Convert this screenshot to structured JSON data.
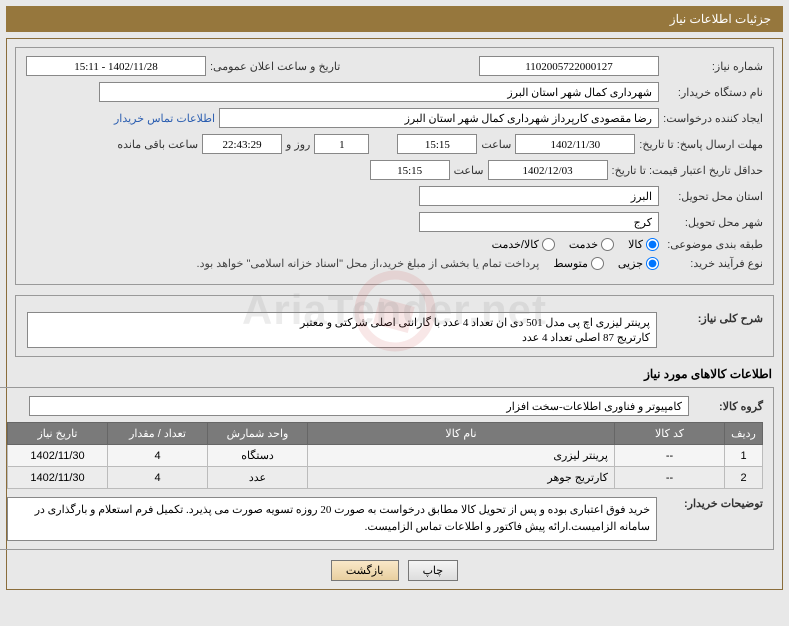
{
  "header": {
    "title": "جزئیات اطلاعات نیاز"
  },
  "fields": {
    "need_no_label": "شماره نیاز:",
    "need_no": "1102005722000127",
    "announce_label": "تاریخ و ساعت اعلان عمومی:",
    "announce": "1402/11/28 - 15:11",
    "buyer_org_label": "نام دستگاه خریدار:",
    "buyer_org": "شهرداری کمال شهر استان البرز",
    "requester_label": "ایجاد کننده درخواست:",
    "requester": "رضا مقصودی کارپرداز شهرداری کمال شهر استان البرز",
    "contact_link": "اطلاعات تماس خریدار",
    "deadline_label": "مهلت ارسال پاسخ: تا تاریخ:",
    "deadline_date": "1402/11/30",
    "time_label": "ساعت",
    "deadline_time": "15:15",
    "days_label": "روز و",
    "days_left": "1",
    "countdown": "22:43:29",
    "remain_label": "ساعت باقی مانده",
    "validity_label": "حداقل تاریخ اعتبار قیمت: تا تاریخ:",
    "validity_date": "1402/12/03",
    "validity_time": "15:15",
    "province_label": "استان محل تحویل:",
    "province": "البرز",
    "city_label": "شهر محل تحویل:",
    "city": "کرج",
    "category_label": "طبقه بندی موضوعی:",
    "cat_goods": "کالا",
    "cat_service": "خدمت",
    "cat_both": "کالا/خدمت",
    "purchase_type_label": "نوع فرآیند خرید:",
    "pt_small": "جزیی",
    "pt_medium": "متوسط",
    "purchase_note": "پرداخت تمام یا بخشی از مبلغ خرید،از محل \"اسناد خزانه اسلامی\" خواهد بود.",
    "summary_label": "شرح کلی نیاز:",
    "summary": "پرینتر لیزری اچ پی مدل 501 دی ان تعداد 4 عدد با گارانتی اصلی شرکتی و معتبر\nکارتریج 87 اصلی تعداد 4 عدد",
    "goods_info_title": "اطلاعات کالاهای مورد نیاز",
    "goods_group_label": "گروه کالا:",
    "goods_group": "کامپیوتر و فناوری اطلاعات-سخت افزار",
    "buyer_notes_label": "توضیحات خریدار:",
    "buyer_notes": "خرید فوق اعتباری بوده و پس از تحویل کالا مطابق درخواست به صورت 20 روزه تسویه صورت می پذیرد. تکمیل فرم استعلام و بارگذاری در سامانه الزامیست.ارائه پیش فاکتور و اطلاعات تماس الزامیست."
  },
  "table": {
    "headers": {
      "row": "ردیف",
      "code": "کد کالا",
      "name": "نام کالا",
      "unit": "واحد شمارش",
      "qty": "تعداد / مقدار",
      "date": "تاریخ نیاز"
    },
    "rows": [
      {
        "n": "1",
        "code": "--",
        "name": "پرینتر لیزری",
        "unit": "دستگاه",
        "qty": "4",
        "date": "1402/11/30"
      },
      {
        "n": "2",
        "code": "--",
        "name": "کارتریج جوهر",
        "unit": "عدد",
        "qty": "4",
        "date": "1402/11/30"
      }
    ]
  },
  "buttons": {
    "print": "چاپ",
    "back": "بازگشت"
  },
  "colors": {
    "header_bg": "#96773d",
    "border": "#8a6d3b",
    "table_header_bg": "#7a7a7a",
    "link": "#2a5db0"
  }
}
